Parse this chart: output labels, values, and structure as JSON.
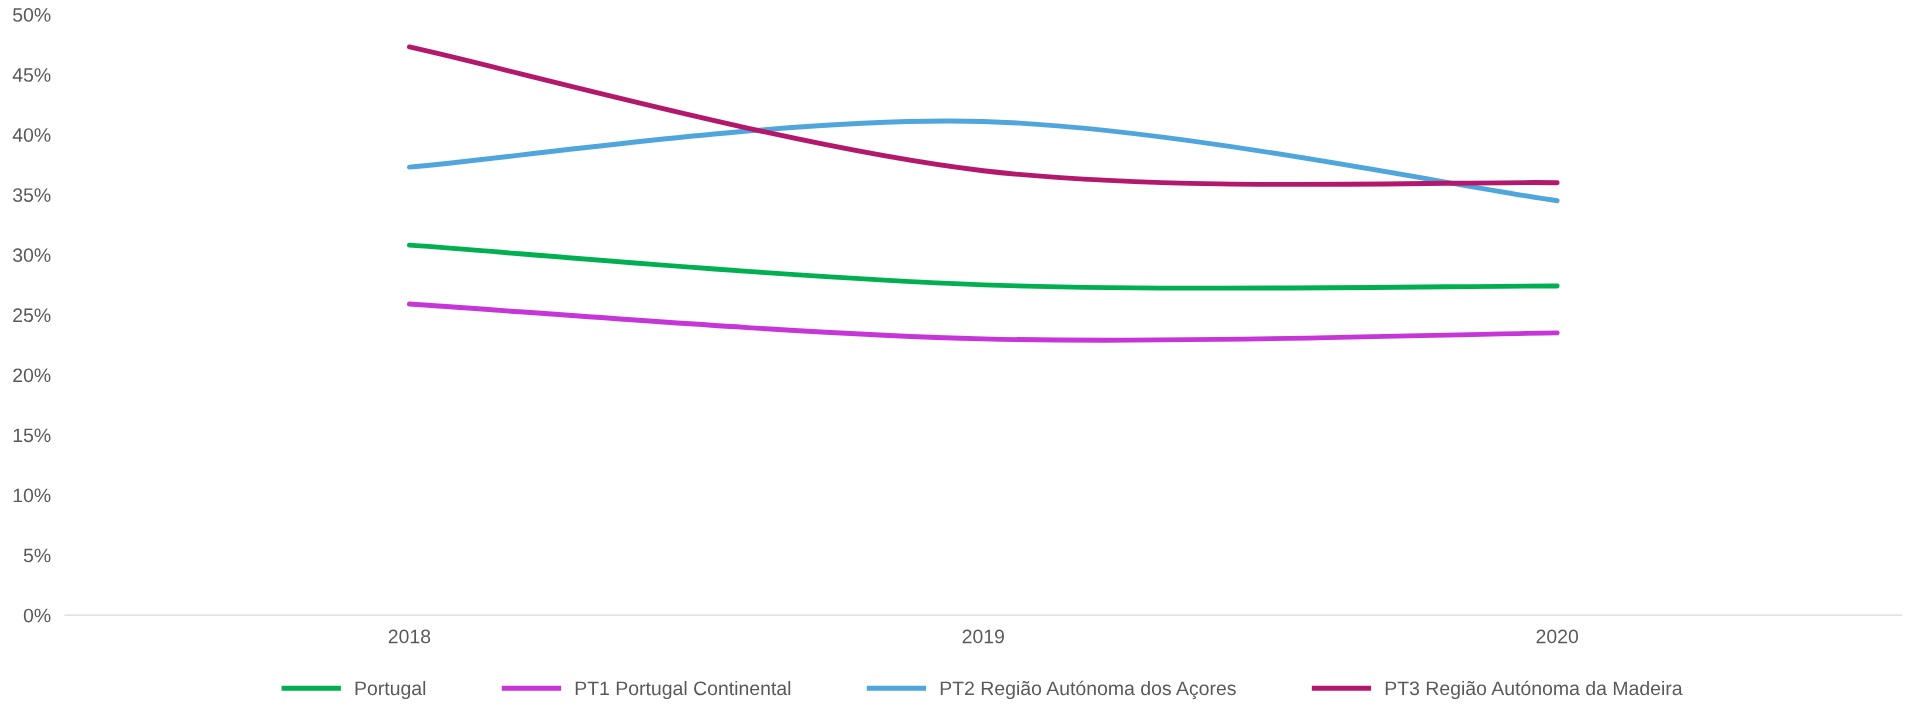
{
  "chart_data": {
    "type": "line",
    "categories": [
      "2018",
      "2019",
      "2020"
    ],
    "series": [
      {
        "name": "Portugal",
        "color": "#00b050",
        "values": [
          30.8,
          27.5,
          27.4
        ]
      },
      {
        "name": "PT1 Portugal Continental",
        "color": "#c535d8",
        "values": [
          25.9,
          23.0,
          23.5
        ]
      },
      {
        "name": "PT2 Região Autónoma dos Açores",
        "color": "#4ea6dc",
        "values": [
          37.3,
          41.1,
          34.5
        ]
      },
      {
        "name": "PT3 Região Autónoma da Madeira",
        "color": "#b3186d",
        "values": [
          47.3,
          37.0,
          36.0
        ]
      }
    ],
    "ylim": [
      0,
      50
    ],
    "yticks": [
      {
        "value": 0,
        "label": "0%"
      },
      {
        "value": 5,
        "label": "5%"
      },
      {
        "value": 10,
        "label": "10%"
      },
      {
        "value": 15,
        "label": "15%"
      },
      {
        "value": 20,
        "label": "20%"
      },
      {
        "value": 25,
        "label": "25%"
      },
      {
        "value": 30,
        "label": "30%"
      },
      {
        "value": 35,
        "label": "35%"
      },
      {
        "value": 40,
        "label": "40%"
      },
      {
        "value": 45,
        "label": "45%"
      },
      {
        "value": 50,
        "label": "50%"
      }
    ],
    "grid": false,
    "legend": "bottom",
    "marker": "none",
    "line_style": "solid"
  }
}
